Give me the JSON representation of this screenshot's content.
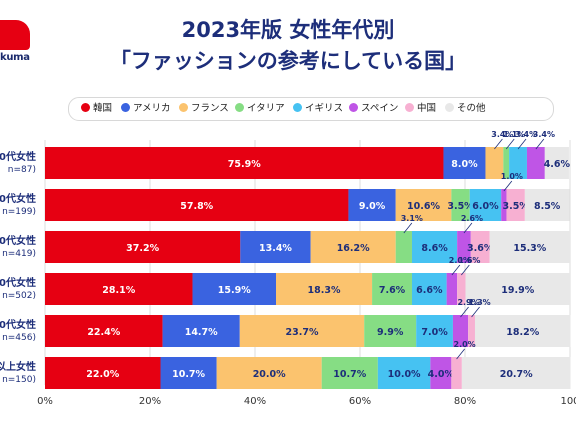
{
  "header": {
    "logo_text": "kuma",
    "title_line1": "2023年版 女性年代別",
    "title_line2": "「ファッションの参考にしている国」"
  },
  "colors": {
    "韓国": "#e60012",
    "アメリカ": "#3a63e0",
    "フランス": "#fbc36e",
    "イタリア": "#86dd84",
    "イギリス": "#46c2f2",
    "スペイン": "#bf55e6",
    "中国": "#f7b0d2",
    "その他": "#e8e8e8",
    "title": "#1d2e7a",
    "annotation_line": "#1d2e7a"
  },
  "chart_data": {
    "type": "bar",
    "orientation": "horizontal",
    "stacked": true,
    "categories": [
      "0代女性",
      "0代女性",
      "0代女性",
      "0代女性",
      "0代女性",
      "以上女性"
    ],
    "category_sublabels": [
      "n=87)",
      "n=199)",
      "n=419)",
      "n=502)",
      "n=456)",
      "n=150)"
    ],
    "series": [
      {
        "name": "韓国",
        "values": [
          75.9,
          57.8,
          37.2,
          28.1,
          22.4,
          22.0
        ]
      },
      {
        "name": "アメリカ",
        "values": [
          8.0,
          9.0,
          13.4,
          15.9,
          14.7,
          10.7
        ]
      },
      {
        "name": "フランス",
        "values": [
          3.4,
          10.6,
          16.2,
          18.3,
          23.7,
          20.0
        ]
      },
      {
        "name": "イタリア",
        "values": [
          1.1,
          3.5,
          3.1,
          7.6,
          9.9,
          10.7
        ]
      },
      {
        "name": "イギリス",
        "values": [
          3.4,
          6.0,
          8.6,
          6.6,
          7.0,
          10.0
        ]
      },
      {
        "name": "スペイン",
        "values": [
          3.4,
          1.0,
          2.6,
          2.0,
          2.9,
          4.0
        ]
      },
      {
        "name": "中国",
        "values": [
          0.0,
          3.5,
          3.6,
          1.6,
          1.3,
          2.0
        ]
      },
      {
        "name": "その他",
        "values": [
          4.6,
          8.5,
          15.3,
          19.9,
          18.2,
          20.7
        ]
      }
    ],
    "labels": [
      [
        "75.9%",
        "8.0%",
        "3.4%",
        "1.1%",
        "3.4%",
        "3.4%",
        "",
        "4.6%"
      ],
      [
        "57.8%",
        "9.0%",
        "10.6%",
        "3.5%",
        "6.0%",
        "1.0%",
        "3.5%",
        "8.5%"
      ],
      [
        "37.2%",
        "13.4%",
        "16.2%",
        "3.1%",
        "8.6%",
        "2.6%",
        "3.6%",
        "15.3%"
      ],
      [
        "28.1%",
        "15.9%",
        "18.3%",
        "7.6%",
        "6.6%",
        "2.0%",
        "1.6%",
        "19.9%"
      ],
      [
        "22.4%",
        "14.7%",
        "23.7%",
        "9.9%",
        "7.0%",
        "2.9%",
        "1.3%",
        "18.2%"
      ],
      [
        "22.0%",
        "10.7%",
        "20.0%",
        "10.7%",
        "10.0%",
        "4.0%",
        "2.0%",
        "20.7%"
      ]
    ],
    "x_ticks": [
      "0%",
      "20%",
      "40%",
      "60%",
      "80%",
      "100"
    ],
    "xlim": [
      0,
      100
    ],
    "grid": true,
    "legend_position": "top"
  }
}
